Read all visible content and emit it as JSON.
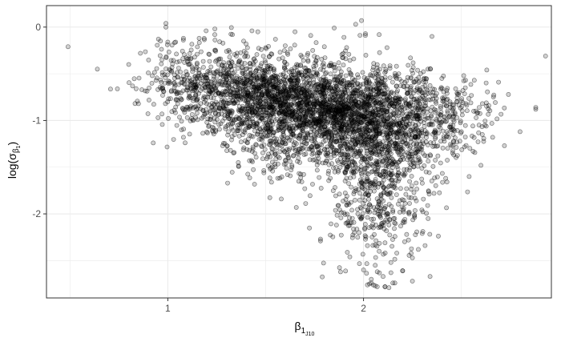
{
  "chart_data": {
    "type": "scatter",
    "title": "",
    "xlabel": "β₁J₁₀",
    "xlabel_main": "β",
    "xlabel_sub": "1",
    "xlabel_subsub": "J10",
    "ylabel": "log(σβ₁)",
    "ylabel_prefix": "log(σ",
    "ylabel_sub": "β",
    "ylabel_subsub": "1",
    "ylabel_suffix": ")",
    "xlim": [
      0.38,
      2.96
    ],
    "ylim": [
      -2.9,
      0.23
    ],
    "x_ticks": [
      {
        "value": 1,
        "label": "1"
      },
      {
        "value": 2,
        "label": "2"
      }
    ],
    "y_ticks": [
      {
        "value": 0,
        "label": "0"
      },
      {
        "value": -1,
        "label": "-1"
      },
      {
        "value": -2,
        "label": "-2"
      }
    ],
    "grid": true,
    "legend": "none",
    "point_color": "#000000",
    "point_fill_opacity": 0.18,
    "panel_border_color": "#333333",
    "grid_color": "#ebebeb",
    "series": [
      {
        "values": [
          {
            "x": 0.49,
            "y": -0.21
          },
          {
            "x": 0.64,
            "y": -0.45
          },
          {
            "x": 0.8,
            "y": -0.4
          },
          {
            "x": 0.82,
            "y": -0.63
          },
          {
            "x": 0.85,
            "y": -0.82
          },
          {
            "x": 0.86,
            "y": -0.28
          },
          {
            "x": 0.9,
            "y": -0.49
          },
          {
            "x": 0.92,
            "y": -0.52
          },
          {
            "x": 0.94,
            "y": -0.57
          },
          {
            "x": 0.95,
            "y": -0.97
          },
          {
            "x": 0.97,
            "y": -0.35
          },
          {
            "x": 0.97,
            "y": -0.93
          },
          {
            "x": 0.98,
            "y": -0.69
          },
          {
            "x": 0.99,
            "y": 0.0
          },
          {
            "x": 0.99,
            "y": 0.04
          },
          {
            "x": 1.0,
            "y": -0.16
          },
          {
            "x": 1.01,
            "y": -0.6
          },
          {
            "x": 1.02,
            "y": -0.47
          },
          {
            "x": 1.04,
            "y": -0.16
          },
          {
            "x": 1.05,
            "y": -0.78
          },
          {
            "x": 1.07,
            "y": -1.1
          },
          {
            "x": 1.08,
            "y": -0.12
          },
          {
            "x": 1.1,
            "y": -0.34
          },
          {
            "x": 1.12,
            "y": -0.61
          },
          {
            "x": 1.13,
            "y": -1.0
          },
          {
            "x": 1.15,
            "y": -0.29
          },
          {
            "x": 1.16,
            "y": -0.12
          },
          {
            "x": 1.18,
            "y": -0.89
          },
          {
            "x": 1.2,
            "y": -1.02
          },
          {
            "x": 1.21,
            "y": -0.58
          },
          {
            "x": 1.22,
            "y": -0.7
          },
          {
            "x": 1.24,
            "y": -0.08
          },
          {
            "x": 1.26,
            "y": -0.4
          },
          {
            "x": 1.28,
            "y": -1.27
          },
          {
            "x": 1.3,
            "y": -0.26
          },
          {
            "x": 1.31,
            "y": -1.12
          },
          {
            "x": 1.33,
            "y": -0.08
          },
          {
            "x": 1.35,
            "y": -0.31
          },
          {
            "x": 1.36,
            "y": -1.45
          },
          {
            "x": 1.38,
            "y": -0.49
          },
          {
            "x": 1.4,
            "y": -0.18
          },
          {
            "x": 1.42,
            "y": -1.06
          },
          {
            "x": 1.43,
            "y": -0.04
          },
          {
            "x": 1.45,
            "y": -0.72
          },
          {
            "x": 1.46,
            "y": -0.05
          },
          {
            "x": 1.48,
            "y": -1.28
          },
          {
            "x": 1.5,
            "y": -0.22
          },
          {
            "x": 1.52,
            "y": -0.86
          },
          {
            "x": 1.53,
            "y": -1.66
          },
          {
            "x": 1.55,
            "y": -0.13
          },
          {
            "x": 1.57,
            "y": -0.57
          },
          {
            "x": 1.58,
            "y": -1.84
          },
          {
            "x": 1.6,
            "y": -0.2
          },
          {
            "x": 1.62,
            "y": -1.21
          },
          {
            "x": 1.63,
            "y": -1.53
          },
          {
            "x": 1.65,
            "y": -0.05
          },
          {
            "x": 1.67,
            "y": -0.92
          },
          {
            "x": 1.68,
            "y": -0.3
          },
          {
            "x": 1.7,
            "y": -1.73
          },
          {
            "x": 1.72,
            "y": -0.62
          },
          {
            "x": 1.73,
            "y": -0.09
          },
          {
            "x": 1.75,
            "y": -1.0
          },
          {
            "x": 1.77,
            "y": -1.34
          },
          {
            "x": 1.78,
            "y": -2.27
          },
          {
            "x": 1.8,
            "y": -0.21
          },
          {
            "x": 1.82,
            "y": -1.57
          },
          {
            "x": 1.83,
            "y": -0.74
          },
          {
            "x": 1.85,
            "y": -0.01
          },
          {
            "x": 1.87,
            "y": -1.91
          },
          {
            "x": 1.88,
            "y": -1.05
          },
          {
            "x": 1.9,
            "y": -0.11
          },
          {
            "x": 1.91,
            "y": -2.1
          },
          {
            "x": 1.92,
            "y": -1.42
          },
          {
            "x": 1.93,
            "y": -2.46
          },
          {
            "x": 1.95,
            "y": -0.34
          },
          {
            "x": 1.96,
            "y": 0.03
          },
          {
            "x": 1.97,
            "y": -2.25
          },
          {
            "x": 1.98,
            "y": -1.68
          },
          {
            "x": 1.99,
            "y": 0.07
          },
          {
            "x": 2.0,
            "y": -2.6
          },
          {
            "x": 2.01,
            "y": -0.07
          },
          {
            "x": 2.02,
            "y": -2.34
          },
          {
            "x": 2.03,
            "y": -1.9
          },
          {
            "x": 2.04,
            "y": -2.7
          },
          {
            "x": 2.05,
            "y": -0.43
          },
          {
            "x": 2.05,
            "y": -2.15
          },
          {
            "x": 2.06,
            "y": -2.55
          },
          {
            "x": 2.07,
            "y": -2.62
          },
          {
            "x": 2.08,
            "y": -0.08
          },
          {
            "x": 2.08,
            "y": -2.4
          },
          {
            "x": 2.09,
            "y": -1.81
          },
          {
            "x": 2.1,
            "y": -2.67
          },
          {
            "x": 2.11,
            "y": -2.31
          },
          {
            "x": 2.12,
            "y": -0.22
          },
          {
            "x": 2.13,
            "y": -2.79
          },
          {
            "x": 2.14,
            "y": -2.52
          },
          {
            "x": 2.15,
            "y": -1.98
          },
          {
            "x": 2.16,
            "y": -2.74
          },
          {
            "x": 2.17,
            "y": -2.42
          },
          {
            "x": 2.18,
            "y": -0.5
          },
          {
            "x": 2.19,
            "y": -2.13
          },
          {
            "x": 2.2,
            "y": -2.61
          },
          {
            "x": 2.21,
            "y": -2.09
          },
          {
            "x": 2.22,
            "y": -1.73
          },
          {
            "x": 2.23,
            "y": -2.28
          },
          {
            "x": 2.24,
            "y": -0.33
          },
          {
            "x": 2.25,
            "y": -2.47
          },
          {
            "x": 2.26,
            "y": -2.02
          },
          {
            "x": 2.27,
            "y": -1.86
          },
          {
            "x": 2.28,
            "y": -2.38
          },
          {
            "x": 2.29,
            "y": -0.68
          },
          {
            "x": 2.3,
            "y": -2.21
          },
          {
            "x": 2.32,
            "y": -1.55
          },
          {
            "x": 2.33,
            "y": -2.05
          },
          {
            "x": 2.35,
            "y": -0.1
          },
          {
            "x": 2.36,
            "y": -1.78
          },
          {
            "x": 2.38,
            "y": -1.38
          },
          {
            "x": 2.4,
            "y": -0.55
          },
          {
            "x": 2.42,
            "y": -1.62
          },
          {
            "x": 2.44,
            "y": -0.95
          },
          {
            "x": 2.46,
            "y": -1.22
          },
          {
            "x": 2.48,
            "y": -0.72
          },
          {
            "x": 2.5,
            "y": -1.12
          },
          {
            "x": 2.52,
            "y": -0.65
          },
          {
            "x": 2.54,
            "y": -1.6
          },
          {
            "x": 2.56,
            "y": -1.33
          },
          {
            "x": 2.58,
            "y": -0.92
          },
          {
            "x": 2.6,
            "y": -1.48
          },
          {
            "x": 2.62,
            "y": -1.05
          },
          {
            "x": 2.64,
            "y": -0.84
          },
          {
            "x": 2.66,
            "y": -1.18
          },
          {
            "x": 2.69,
            "y": -0.59
          },
          {
            "x": 2.72,
            "y": -1.27
          },
          {
            "x": 2.8,
            "y": -1.12
          },
          {
            "x": 2.88,
            "y": -0.88
          },
          {
            "x": 2.93,
            "y": -0.31
          },
          {
            "x": 2.11,
            "y": -2.78
          },
          {
            "x": 2.11,
            "y": -2.78
          },
          {
            "x": 2.05,
            "y": -2.76
          },
          {
            "x": 2.06,
            "y": -2.77
          },
          {
            "x": 2.15,
            "y": -2.74
          },
          {
            "x": 2.03,
            "y": -2.75
          },
          {
            "x": 2.14,
            "y": -2.63
          },
          {
            "x": 2.34,
            "y": -2.67
          },
          {
            "x": 2.25,
            "y": -2.72
          },
          {
            "x": 2.88,
            "y": -0.86
          },
          {
            "x": 2.02,
            "y": -2.76
          },
          {
            "x": 2.04,
            "y": -2.74
          },
          {
            "x": 2.07,
            "y": -2.78
          }
        ]
      }
    ],
    "clusters": [
      {
        "cx": 1.82,
        "cy": -0.88,
        "sx": 0.27,
        "sy": 0.23,
        "n": 2000
      },
      {
        "cx": 1.45,
        "cy": -0.68,
        "sx": 0.2,
        "sy": 0.2,
        "n": 800
      },
      {
        "cx": 2.1,
        "cy": -1.25,
        "sx": 0.14,
        "sy": 0.36,
        "n": 750
      },
      {
        "cx": 2.05,
        "cy": -1.95,
        "sx": 0.12,
        "sy": 0.28,
        "n": 220
      },
      {
        "cx": 1.12,
        "cy": -0.55,
        "sx": 0.13,
        "sy": 0.2,
        "n": 220
      },
      {
        "cx": 2.4,
        "cy": -0.95,
        "sx": 0.14,
        "sy": 0.22,
        "n": 200
      },
      {
        "cx": 1.65,
        "cy": -1.3,
        "sx": 0.18,
        "sy": 0.18,
        "n": 220
      }
    ]
  }
}
